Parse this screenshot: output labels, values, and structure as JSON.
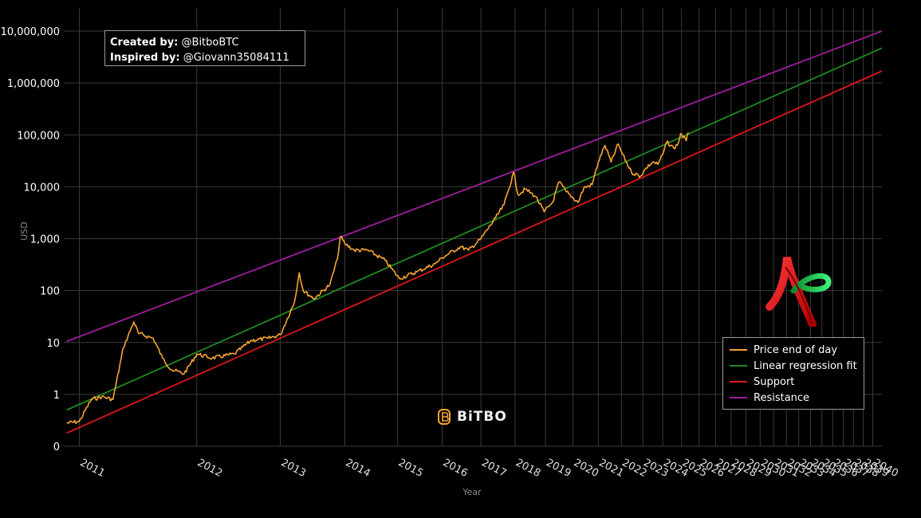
{
  "credit": {
    "created_label": "Created by:",
    "created_value": "@BitboBTC",
    "inspired_label": "Inspired by:",
    "inspired_value": "@Giovann35084111"
  },
  "watermark": {
    "text": "BiTBO",
    "icon": "bitbo-b-icon"
  },
  "colors": {
    "background": "#000000",
    "grid": "#3a3a3a",
    "price": "#f7a531",
    "regression": "#1f8a1f",
    "support": "#e0161c",
    "resistance": "#9b1d9b"
  },
  "chart_data": {
    "type": "line",
    "title": "",
    "xlabel": "Year",
    "ylabel": "USD",
    "y_scale": "log",
    "x_scale": "log (days since genesis)",
    "grid": true,
    "legend_position": "bottom-right",
    "x_tick_labels": [
      "2011",
      "2012",
      "2013",
      "2014",
      "2015",
      "2016",
      "2017",
      "2018",
      "2019",
      "2020",
      "2021",
      "2022",
      "2023",
      "2024",
      "2025",
      "2026",
      "2027",
      "2028",
      "2029",
      "2030",
      "2031",
      "2032",
      "2033",
      "2034",
      "2035",
      "2036",
      "2037",
      "2038",
      "2039",
      "2040"
    ],
    "y_tick_labels": [
      "0",
      "1",
      "10",
      "100",
      "1,000",
      "10,000",
      "100,000",
      "1,000,000",
      "10,000,000"
    ],
    "y_tick_values": [
      0.1,
      1,
      10,
      100,
      1000,
      10000,
      100000,
      1000000,
      10000000
    ],
    "ylim": [
      0.1,
      10000000
    ],
    "xlim": [
      "2010-11-24",
      "2040-12-31"
    ],
    "series": [
      {
        "name": "Price end of day",
        "color": "#f7a531",
        "points": [
          [
            "2010-12-01",
            0.28
          ],
          [
            "2011-01-01",
            0.3
          ],
          [
            "2011-02-01",
            0.8
          ],
          [
            "2011-03-01",
            0.9
          ],
          [
            "2011-04-01",
            0.8
          ],
          [
            "2011-05-01",
            8.0
          ],
          [
            "2011-06-01",
            25.0
          ],
          [
            "2011-06-15",
            15.0
          ],
          [
            "2011-08-01",
            12.0
          ],
          [
            "2011-09-01",
            5.0
          ],
          [
            "2011-10-01",
            3.0
          ],
          [
            "2011-11-15",
            2.5
          ],
          [
            "2012-01-01",
            6.0
          ],
          [
            "2012-03-01",
            5.0
          ],
          [
            "2012-06-01",
            6.0
          ],
          [
            "2012-08-15",
            11.0
          ],
          [
            "2012-11-01",
            12.0
          ],
          [
            "2013-01-01",
            14.0
          ],
          [
            "2013-03-15",
            60.0
          ],
          [
            "2013-04-10",
            220.0
          ],
          [
            "2013-05-01",
            100.0
          ],
          [
            "2013-07-01",
            70.0
          ],
          [
            "2013-10-01",
            130.0
          ],
          [
            "2013-11-15",
            400.0
          ],
          [
            "2013-12-04",
            1100.0
          ],
          [
            "2014-01-01",
            800.0
          ],
          [
            "2014-03-01",
            600.0
          ],
          [
            "2014-06-01",
            600.0
          ],
          [
            "2014-10-01",
            380.0
          ],
          [
            "2015-01-14",
            170.0
          ],
          [
            "2015-06-01",
            230.0
          ],
          [
            "2015-11-01",
            330.0
          ],
          [
            "2016-01-01",
            430.0
          ],
          [
            "2016-06-15",
            700.0
          ],
          [
            "2016-09-01",
            600.0
          ],
          [
            "2017-01-01",
            1000.0
          ],
          [
            "2017-06-01",
            2500.0
          ],
          [
            "2017-09-01",
            4500.0
          ],
          [
            "2017-12-17",
            19000.0
          ],
          [
            "2018-02-05",
            7000.0
          ],
          [
            "2018-05-01",
            9000.0
          ],
          [
            "2018-09-01",
            6500.0
          ],
          [
            "2018-12-15",
            3300.0
          ],
          [
            "2019-04-01",
            5000.0
          ],
          [
            "2019-06-26",
            12500.0
          ],
          [
            "2019-10-01",
            8000.0
          ],
          [
            "2020-03-12",
            5000.0
          ],
          [
            "2020-06-01",
            9500.0
          ],
          [
            "2020-10-01",
            11000.0
          ],
          [
            "2021-01-01",
            30000.0
          ],
          [
            "2021-04-14",
            63000.0
          ],
          [
            "2021-07-20",
            30000.0
          ],
          [
            "2021-11-10",
            67000.0
          ],
          [
            "2022-01-01",
            47000.0
          ],
          [
            "2022-06-18",
            19000.0
          ],
          [
            "2022-11-21",
            16000.0
          ],
          [
            "2023-03-01",
            23000.0
          ],
          [
            "2023-07-01",
            30000.0
          ],
          [
            "2023-10-01",
            27000.0
          ],
          [
            "2024-01-01",
            42000.0
          ],
          [
            "2024-03-14",
            73000.0
          ],
          [
            "2024-08-05",
            55000.0
          ],
          [
            "2024-11-01",
            70000.0
          ],
          [
            "2024-12-17",
            106000.0
          ],
          [
            "2025-04-08",
            77000.0
          ],
          [
            "2025-05-22",
            111000.0
          ]
        ]
      },
      {
        "name": "Linear regression fit",
        "color": "#1f8a1f",
        "line": [
          [
            "2010-12-01",
            0.5
          ],
          [
            "2040-12-31",
            4700000
          ]
        ]
      },
      {
        "name": "Support",
        "color": "#e0161c",
        "line": [
          [
            "2010-12-01",
            0.18
          ],
          [
            "2040-12-31",
            1700000
          ]
        ]
      },
      {
        "name": "Resistance",
        "color": "#9b1d9b",
        "line": [
          [
            "2010-12-01",
            10.5
          ],
          [
            "2040-12-31",
            10000000
          ]
        ]
      }
    ]
  }
}
